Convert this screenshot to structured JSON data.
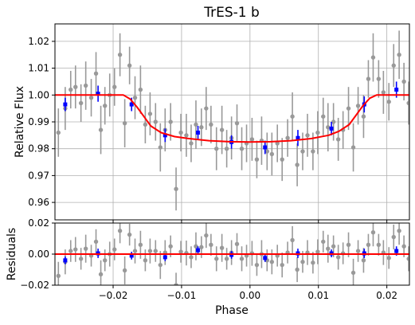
{
  "chart_data": {
    "type": "scatter",
    "title": "TrES-1 b",
    "xlabel": "Phase",
    "xlim": [
      -0.0285,
      0.0233
    ],
    "xticks": [
      -0.02,
      -0.01,
      0.0,
      0.01,
      0.02
    ],
    "xtick_labels": [
      "−0.02",
      "−0.01",
      "0.00",
      "0.01",
      "0.02"
    ],
    "grid": true,
    "colors": {
      "raw": "#999999",
      "binned": "#0000ff",
      "model": "#ff0000",
      "grid": "#b0b0b0"
    },
    "panels": [
      {
        "name": "flux",
        "ylabel": "Relative Flux",
        "ylim": [
          0.9535,
          1.0265
        ],
        "yticks": [
          0.96,
          0.97,
          0.98,
          0.99,
          1.0,
          1.01,
          1.02
        ],
        "ytick_labels": [
          "0.96",
          "0.97",
          "0.98",
          "0.99",
          "1.00",
          "1.01",
          "1.02"
        ],
        "raw_points": [
          {
            "x": -0.028,
            "y": 0.986,
            "e": 0.009
          },
          {
            "x": -0.027,
            "y": 0.995,
            "e": 0.008
          },
          {
            "x": -0.0262,
            "y": 1.002,
            "e": 0.007
          },
          {
            "x": -0.0255,
            "y": 1.003,
            "e": 0.008
          },
          {
            "x": -0.0247,
            "y": 0.997,
            "e": 0.007
          },
          {
            "x": -0.024,
            "y": 1.0035,
            "e": 0.009
          },
          {
            "x": -0.0232,
            "y": 0.999,
            "e": 0.007
          },
          {
            "x": -0.0225,
            "y": 1.008,
            "e": 0.008
          },
          {
            "x": -0.0218,
            "y": 0.987,
            "e": 0.009
          },
          {
            "x": -0.0212,
            "y": 0.996,
            "e": 0.007
          },
          {
            "x": -0.0205,
            "y": 1.0,
            "e": 0.008
          },
          {
            "x": -0.0198,
            "y": 1.003,
            "e": 0.007
          },
          {
            "x": -0.019,
            "y": 1.015,
            "e": 0.008
          },
          {
            "x": -0.0183,
            "y": 0.9895,
            "e": 0.009
          },
          {
            "x": -0.0176,
            "y": 1.011,
            "e": 0.007
          },
          {
            "x": -0.0168,
            "y": 0.999,
            "e": 0.008
          },
          {
            "x": -0.016,
            "y": 1.002,
            "e": 0.009
          },
          {
            "x": -0.0153,
            "y": 0.989,
            "e": 0.007
          },
          {
            "x": -0.0146,
            "y": 0.993,
            "e": 0.008
          },
          {
            "x": -0.0138,
            "y": 0.99,
            "e": 0.007
          },
          {
            "x": -0.0131,
            "y": 0.9805,
            "e": 0.009
          },
          {
            "x": -0.0124,
            "y": 0.987,
            "e": 0.008
          },
          {
            "x": -0.0116,
            "y": 0.99,
            "e": 0.007
          },
          {
            "x": -0.0108,
            "y": 0.965,
            "e": 0.008
          },
          {
            "x": -0.0101,
            "y": 0.986,
            "e": 0.007
          },
          {
            "x": -0.0093,
            "y": 0.985,
            "e": 0.008
          },
          {
            "x": -0.0086,
            "y": 0.982,
            "e": 0.007
          },
          {
            "x": -0.0079,
            "y": 0.989,
            "e": 0.009
          },
          {
            "x": -0.0071,
            "y": 0.988,
            "e": 0.007
          },
          {
            "x": -0.0064,
            "y": 0.995,
            "e": 0.008
          },
          {
            "x": -0.0057,
            "y": 0.989,
            "e": 0.007
          },
          {
            "x": -0.0049,
            "y": 0.98,
            "e": 0.008
          },
          {
            "x": -0.0041,
            "y": 0.987,
            "e": 0.009
          },
          {
            "x": -0.0034,
            "y": 0.98,
            "e": 0.007
          },
          {
            "x": -0.0027,
            "y": 0.984,
            "e": 0.008
          },
          {
            "x": -0.0019,
            "y": 0.9895,
            "e": 0.007
          },
          {
            "x": -0.0012,
            "y": 0.98,
            "e": 0.008
          },
          {
            "x": -0.0005,
            "y": 0.982,
            "e": 0.007
          },
          {
            "x": 0.0003,
            "y": 0.9835,
            "e": 0.008
          },
          {
            "x": 0.001,
            "y": 0.976,
            "e": 0.007
          },
          {
            "x": 0.0017,
            "y": 0.983,
            "e": 0.009
          },
          {
            "x": 0.0025,
            "y": 0.979,
            "e": 0.007
          },
          {
            "x": 0.0032,
            "y": 0.978,
            "e": 0.008
          },
          {
            "x": 0.004,
            "y": 0.982,
            "e": 0.007
          },
          {
            "x": 0.0047,
            "y": 0.976,
            "e": 0.008
          },
          {
            "x": 0.0055,
            "y": 0.984,
            "e": 0.007
          },
          {
            "x": 0.0062,
            "y": 0.992,
            "e": 0.009
          },
          {
            "x": 0.0069,
            "y": 0.974,
            "e": 0.008
          },
          {
            "x": 0.0077,
            "y": 0.979,
            "e": 0.007
          },
          {
            "x": 0.0084,
            "y": 0.985,
            "e": 0.008
          },
          {
            "x": 0.0092,
            "y": 0.979,
            "e": 0.007
          },
          {
            "x": 0.0099,
            "y": 0.986,
            "e": 0.008
          },
          {
            "x": 0.0107,
            "y": 0.992,
            "e": 0.007
          },
          {
            "x": 0.0114,
            "y": 0.988,
            "e": 0.009
          },
          {
            "x": 0.0122,
            "y": 0.99,
            "e": 0.007
          },
          {
            "x": 0.0129,
            "y": 0.9835,
            "e": 0.008
          },
          {
            "x": 0.0136,
            "y": 0.987,
            "e": 0.007
          },
          {
            "x": 0.0144,
            "y": 0.995,
            "e": 0.008
          },
          {
            "x": 0.0151,
            "y": 0.9805,
            "e": 0.009
          },
          {
            "x": 0.0158,
            "y": 0.996,
            "e": 0.007
          },
          {
            "x": 0.0166,
            "y": 0.992,
            "e": 0.008
          },
          {
            "x": 0.0173,
            "y": 1.006,
            "e": 0.007
          },
          {
            "x": 0.018,
            "y": 1.014,
            "e": 0.009
          },
          {
            "x": 0.0188,
            "y": 1.006,
            "e": 0.007
          },
          {
            "x": 0.0195,
            "y": 1.001,
            "e": 0.008
          },
          {
            "x": 0.0203,
            "y": 0.9975,
            "e": 0.007
          },
          {
            "x": 0.021,
            "y": 1.011,
            "e": 0.008
          },
          {
            "x": 0.0218,
            "y": 1.015,
            "e": 0.009
          },
          {
            "x": 0.0225,
            "y": 1.005,
            "e": 0.007
          },
          {
            "x": 0.0232,
            "y": 0.997,
            "e": 0.008
          }
        ],
        "binned_points": [
          {
            "x": -0.027,
            "y": 0.9965,
            "e": 0.0025
          },
          {
            "x": -0.0222,
            "y": 1.0005,
            "e": 0.003
          },
          {
            "x": -0.0173,
            "y": 0.9965,
            "e": 0.0025
          },
          {
            "x": -0.0124,
            "y": 0.985,
            "e": 0.0025
          },
          {
            "x": -0.0076,
            "y": 0.986,
            "e": 0.0025
          },
          {
            "x": -0.0027,
            "y": 0.9825,
            "e": 0.0025
          },
          {
            "x": 0.0022,
            "y": 0.9805,
            "e": 0.0025
          },
          {
            "x": 0.007,
            "y": 0.984,
            "e": 0.003
          },
          {
            "x": 0.0119,
            "y": 0.9875,
            "e": 0.0025
          },
          {
            "x": 0.0167,
            "y": 0.9965,
            "e": 0.003
          },
          {
            "x": 0.0214,
            "y": 1.002,
            "e": 0.003
          }
        ],
        "model": {
          "x": [
            -0.0285,
            -0.0185,
            -0.0175,
            -0.0165,
            -0.0155,
            -0.0145,
            -0.013,
            -0.011,
            -0.009,
            -0.006,
            -0.003,
            0.0,
            0.003,
            0.006,
            0.009,
            0.0115,
            0.013,
            0.0145,
            0.0155,
            0.0165,
            0.0175,
            0.0185,
            0.0233
          ],
          "y": [
            1.0,
            1.0,
            0.9985,
            0.9955,
            0.992,
            0.9885,
            0.986,
            0.9845,
            0.9838,
            0.983,
            0.9826,
            0.9825,
            0.9826,
            0.983,
            0.9838,
            0.985,
            0.9865,
            0.989,
            0.9925,
            0.996,
            0.9988,
            1.0,
            1.0
          ]
        }
      },
      {
        "name": "residuals",
        "ylabel": "Residuals",
        "ylim": [
          -0.02,
          0.02
        ],
        "yticks": [
          -0.02,
          0.0,
          0.02
        ],
        "ytick_labels": [
          "−0.02",
          "0.00",
          "0.02"
        ],
        "raw_points": [
          {
            "x": -0.028,
            "y": -0.014,
            "e": 0.009
          },
          {
            "x": -0.027,
            "y": -0.005,
            "e": 0.008
          },
          {
            "x": -0.0262,
            "y": 0.002,
            "e": 0.007
          },
          {
            "x": -0.0255,
            "y": 0.003,
            "e": 0.008
          },
          {
            "x": -0.0247,
            "y": -0.003,
            "e": 0.007
          },
          {
            "x": -0.024,
            "y": 0.0035,
            "e": 0.009
          },
          {
            "x": -0.0232,
            "y": -0.001,
            "e": 0.007
          },
          {
            "x": -0.0225,
            "y": 0.008,
            "e": 0.008
          },
          {
            "x": -0.0218,
            "y": -0.013,
            "e": 0.009
          },
          {
            "x": -0.0212,
            "y": -0.004,
            "e": 0.007
          },
          {
            "x": -0.0205,
            "y": 0.0,
            "e": 0.008
          },
          {
            "x": -0.0198,
            "y": 0.003,
            "e": 0.007
          },
          {
            "x": -0.019,
            "y": 0.015,
            "e": 0.008
          },
          {
            "x": -0.0183,
            "y": -0.0105,
            "e": 0.009
          },
          {
            "x": -0.0176,
            "y": 0.0125,
            "e": 0.007
          },
          {
            "x": -0.0168,
            "y": 0.002,
            "e": 0.008
          },
          {
            "x": -0.016,
            "y": 0.006,
            "e": 0.009
          },
          {
            "x": -0.0153,
            "y": -0.004,
            "e": 0.007
          },
          {
            "x": -0.0146,
            "y": 0.002,
            "e": 0.008
          },
          {
            "x": -0.0138,
            "y": 0.002,
            "e": 0.007
          },
          {
            "x": -0.0131,
            "y": -0.007,
            "e": 0.009
          },
          {
            "x": -0.0124,
            "y": 0.001,
            "e": 0.008
          },
          {
            "x": -0.0116,
            "y": 0.005,
            "e": 0.007
          },
          {
            "x": -0.0108,
            "y": -0.02,
            "e": 0.008
          },
          {
            "x": -0.0101,
            "y": 0.0015,
            "e": 0.007
          },
          {
            "x": -0.0093,
            "y": 0.0007,
            "e": 0.008
          },
          {
            "x": -0.0086,
            "y": -0.002,
            "e": 0.007
          },
          {
            "x": -0.0079,
            "y": 0.005,
            "e": 0.009
          },
          {
            "x": -0.0071,
            "y": 0.0045,
            "e": 0.007
          },
          {
            "x": -0.0064,
            "y": 0.012,
            "e": 0.008
          },
          {
            "x": -0.0057,
            "y": 0.006,
            "e": 0.007
          },
          {
            "x": -0.0049,
            "y": -0.003,
            "e": 0.008
          },
          {
            "x": -0.0041,
            "y": 0.004,
            "e": 0.009
          },
          {
            "x": -0.0034,
            "y": -0.003,
            "e": 0.007
          },
          {
            "x": -0.0027,
            "y": 0.001,
            "e": 0.008
          },
          {
            "x": -0.0019,
            "y": 0.0065,
            "e": 0.007
          },
          {
            "x": -0.0012,
            "y": -0.003,
            "e": 0.008
          },
          {
            "x": -0.0005,
            "y": -0.001,
            "e": 0.007
          },
          {
            "x": 0.0003,
            "y": 0.0005,
            "e": 0.008
          },
          {
            "x": 0.001,
            "y": -0.007,
            "e": 0.007
          },
          {
            "x": 0.0017,
            "y": 0.0,
            "e": 0.009
          },
          {
            "x": 0.0025,
            "y": -0.004,
            "e": 0.007
          },
          {
            "x": 0.0032,
            "y": -0.005,
            "e": 0.008
          },
          {
            "x": 0.004,
            "y": -0.001,
            "e": 0.007
          },
          {
            "x": 0.0047,
            "y": -0.007,
            "e": 0.008
          },
          {
            "x": 0.0055,
            "y": 0.001,
            "e": 0.007
          },
          {
            "x": 0.0062,
            "y": 0.009,
            "e": 0.009
          },
          {
            "x": 0.0069,
            "y": -0.01,
            "e": 0.008
          },
          {
            "x": 0.0077,
            "y": -0.005,
            "e": 0.007
          },
          {
            "x": 0.0084,
            "y": 0.001,
            "e": 0.008
          },
          {
            "x": 0.0092,
            "y": -0.0055,
            "e": 0.007
          },
          {
            "x": 0.0099,
            "y": 0.0015,
            "e": 0.008
          },
          {
            "x": 0.0107,
            "y": 0.008,
            "e": 0.007
          },
          {
            "x": 0.0114,
            "y": 0.0035,
            "e": 0.009
          },
          {
            "x": 0.0122,
            "y": 0.005,
            "e": 0.007
          },
          {
            "x": 0.0129,
            "y": -0.002,
            "e": 0.008
          },
          {
            "x": 0.0136,
            "y": 0.0005,
            "e": 0.007
          },
          {
            "x": 0.0144,
            "y": 0.006,
            "e": 0.008
          },
          {
            "x": 0.0151,
            "y": -0.012,
            "e": 0.009
          },
          {
            "x": 0.0158,
            "y": 0.002,
            "e": 0.007
          },
          {
            "x": 0.0166,
            "y": -0.004,
            "e": 0.008
          },
          {
            "x": 0.0173,
            "y": 0.006,
            "e": 0.007
          },
          {
            "x": 0.018,
            "y": 0.014,
            "e": 0.009
          },
          {
            "x": 0.0188,
            "y": 0.006,
            "e": 0.007
          },
          {
            "x": 0.0195,
            "y": 0.001,
            "e": 0.008
          },
          {
            "x": 0.0203,
            "y": -0.0025,
            "e": 0.007
          },
          {
            "x": 0.021,
            "y": 0.011,
            "e": 0.008
          },
          {
            "x": 0.0218,
            "y": 0.015,
            "e": 0.009
          },
          {
            "x": 0.0225,
            "y": 0.005,
            "e": 0.007
          },
          {
            "x": 0.0232,
            "y": -0.003,
            "e": 0.008
          }
        ],
        "binned_points": [
          {
            "x": -0.027,
            "y": -0.004,
            "e": 0.0025
          },
          {
            "x": -0.0222,
            "y": 0.0005,
            "e": 0.003
          },
          {
            "x": -0.0173,
            "y": -0.001,
            "e": 0.0025
          },
          {
            "x": -0.0124,
            "y": -0.002,
            "e": 0.0025
          },
          {
            "x": -0.0076,
            "y": 0.0025,
            "e": 0.0025
          },
          {
            "x": -0.0027,
            "y": -0.0005,
            "e": 0.0025
          },
          {
            "x": 0.0022,
            "y": -0.0025,
            "e": 0.0025
          },
          {
            "x": 0.007,
            "y": 0.0005,
            "e": 0.003
          },
          {
            "x": 0.0119,
            "y": 0.0005,
            "e": 0.0025
          },
          {
            "x": 0.0167,
            "y": 0.0005,
            "e": 0.003
          },
          {
            "x": 0.0214,
            "y": 0.002,
            "e": 0.003
          }
        ],
        "model": {
          "x": [
            -0.0285,
            0.0233
          ],
          "y": [
            0.0,
            0.0
          ]
        }
      }
    ]
  }
}
